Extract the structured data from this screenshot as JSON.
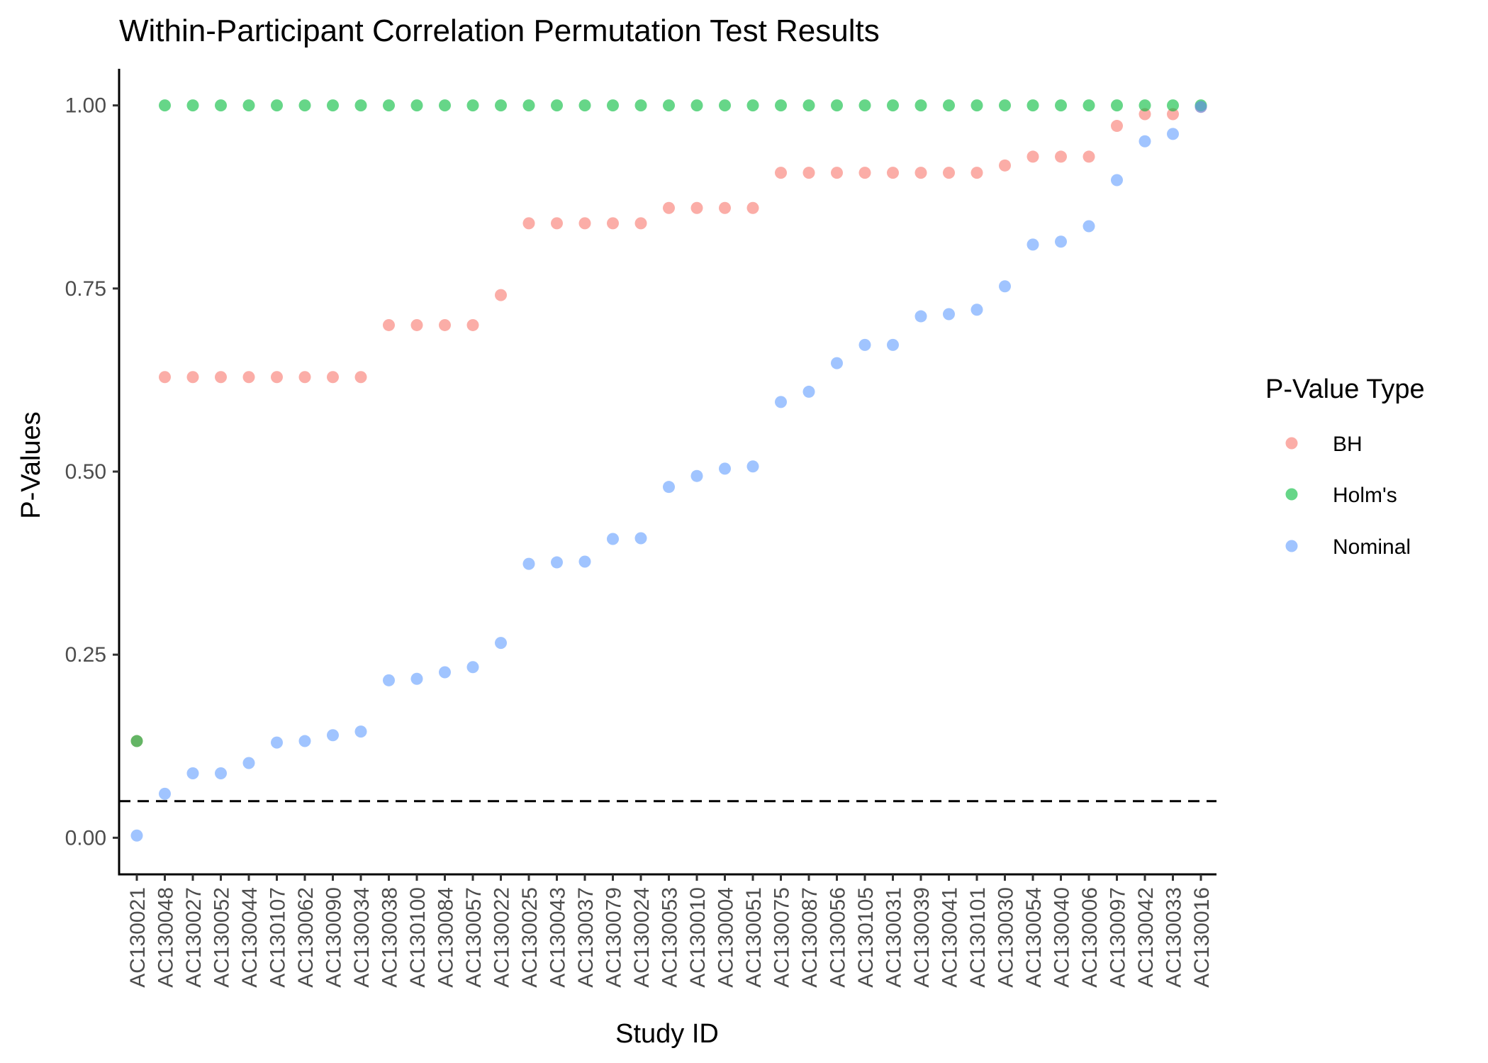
{
  "chart_data": {
    "type": "scatter",
    "title": "Within-Participant Correlation Permutation Test Results",
    "xlabel": "Study ID",
    "ylabel": "P-Values",
    "ylim": [
      -0.05,
      1.05
    ],
    "yticks": [
      0.0,
      0.25,
      0.5,
      0.75,
      1.0
    ],
    "ytick_labels": [
      "0.00",
      "0.25",
      "0.50",
      "0.75",
      "1.00"
    ],
    "reference_line": {
      "y": 0.05,
      "style": "dashed"
    },
    "grid": false,
    "legend": {
      "title": "P-Value Type",
      "position": "right"
    },
    "categories": [
      "AC130021",
      "AC130048",
      "AC130027",
      "AC130052",
      "AC130044",
      "AC130107",
      "AC130062",
      "AC130090",
      "AC130034",
      "AC130038",
      "AC130100",
      "AC130084",
      "AC130057",
      "AC130022",
      "AC130025",
      "AC130043",
      "AC130037",
      "AC130079",
      "AC130024",
      "AC130053",
      "AC130010",
      "AC130004",
      "AC130051",
      "AC130075",
      "AC130087",
      "AC130056",
      "AC130105",
      "AC130031",
      "AC130039",
      "AC130041",
      "AC130101",
      "AC130030",
      "AC130054",
      "AC130040",
      "AC130006",
      "AC130097",
      "AC130042",
      "AC130033",
      "AC130016"
    ],
    "series": [
      {
        "name": "BH",
        "color": "#F8766D",
        "values": [
          0.132,
          0.629,
          0.629,
          0.629,
          0.629,
          0.629,
          0.629,
          0.629,
          0.629,
          0.7,
          0.7,
          0.7,
          0.7,
          0.741,
          0.839,
          0.839,
          0.839,
          0.839,
          0.839,
          0.86,
          0.86,
          0.86,
          0.86,
          0.908,
          0.908,
          0.908,
          0.908,
          0.908,
          0.908,
          0.908,
          0.908,
          0.918,
          0.93,
          0.93,
          0.93,
          0.972,
          0.988,
          0.988,
          0.998
        ]
      },
      {
        "name": "Holm's",
        "color": "#00BA38",
        "values": [
          0.132,
          1.0,
          1.0,
          1.0,
          1.0,
          1.0,
          1.0,
          1.0,
          1.0,
          1.0,
          1.0,
          1.0,
          1.0,
          1.0,
          1.0,
          1.0,
          1.0,
          1.0,
          1.0,
          1.0,
          1.0,
          1.0,
          1.0,
          1.0,
          1.0,
          1.0,
          1.0,
          1.0,
          1.0,
          1.0,
          1.0,
          1.0,
          1.0,
          1.0,
          1.0,
          1.0,
          1.0,
          1.0,
          1.0
        ]
      },
      {
        "name": "Nominal",
        "color": "#619CFF",
        "values": [
          0.003,
          0.06,
          0.088,
          0.088,
          0.102,
          0.13,
          0.132,
          0.14,
          0.145,
          0.215,
          0.217,
          0.226,
          0.233,
          0.266,
          0.374,
          0.376,
          0.377,
          0.408,
          0.409,
          0.479,
          0.494,
          0.504,
          0.507,
          0.595,
          0.609,
          0.648,
          0.673,
          0.673,
          0.712,
          0.715,
          0.721,
          0.753,
          0.81,
          0.814,
          0.835,
          0.898,
          0.951,
          0.961,
          0.998
        ]
      }
    ]
  }
}
